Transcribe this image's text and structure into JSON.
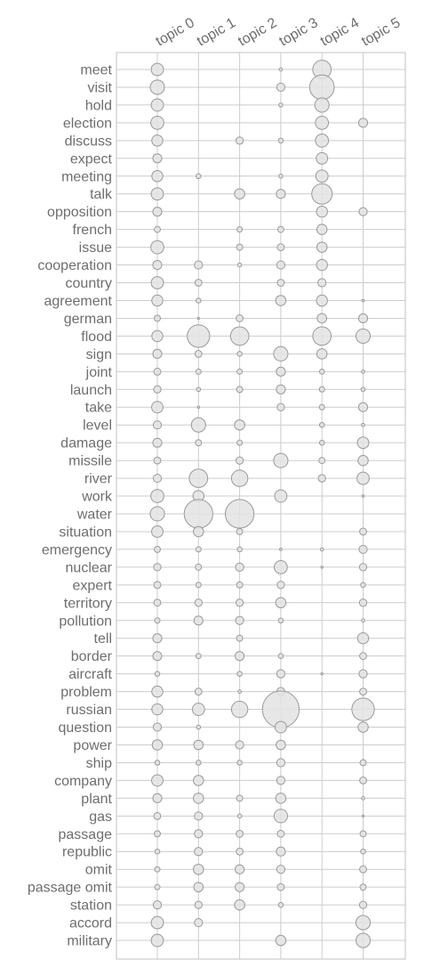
{
  "chart_data": {
    "type": "bubble-matrix",
    "topics": [
      "topic 0",
      "topic 1",
      "topic 2",
      "topic 3",
      "topic 4",
      "topic 5"
    ],
    "words": [
      "meet",
      "visit",
      "hold",
      "election",
      "discuss",
      "expect",
      "meeting",
      "talk",
      "opposition",
      "french",
      "issue",
      "cooperation",
      "country",
      "agreement",
      "german",
      "flood",
      "sign",
      "joint",
      "launch",
      "take",
      "level",
      "damage",
      "missile",
      "river",
      "work",
      "water",
      "situation",
      "emergency",
      "nuclear",
      "expert",
      "territory",
      "pollution",
      "tell",
      "border",
      "aircraft",
      "problem",
      "russian",
      "question",
      "power",
      "ship",
      "company",
      "plant",
      "gas",
      "passage",
      "republic",
      "omit",
      "passage omit",
      "station",
      "accord",
      "military"
    ],
    "values": [
      [
        0.3,
        0,
        0,
        0.08,
        0.45,
        0
      ],
      [
        0.35,
        0,
        0,
        0.2,
        0.6,
        0
      ],
      [
        0.3,
        0,
        0,
        0.1,
        0.35,
        0
      ],
      [
        0.32,
        0,
        0,
        0,
        0.32,
        0.22
      ],
      [
        0.27,
        0,
        0.18,
        0.12,
        0.32,
        0
      ],
      [
        0.22,
        0,
        0,
        0,
        0.28,
        0
      ],
      [
        0.27,
        0.12,
        0,
        0.1,
        0.3,
        0
      ],
      [
        0.3,
        0,
        0.25,
        0.22,
        0.5,
        0
      ],
      [
        0.22,
        0,
        0,
        0,
        0.27,
        0.2
      ],
      [
        0.15,
        0,
        0.13,
        0.15,
        0.25,
        0
      ],
      [
        0.32,
        0,
        0.15,
        0.17,
        0.25,
        0
      ],
      [
        0.22,
        0.2,
        0.1,
        0.2,
        0.27,
        0
      ],
      [
        0.3,
        0.17,
        0,
        0.17,
        0.2,
        0
      ],
      [
        0.27,
        0.12,
        0,
        0.25,
        0.27,
        0.06
      ],
      [
        0.15,
        0.04,
        0.17,
        0,
        0.23,
        0.22
      ],
      [
        0.27,
        0.55,
        0.45,
        0,
        0.45,
        0.35
      ],
      [
        0.22,
        0.17,
        0.12,
        0.35,
        0.25,
        0
      ],
      [
        0.17,
        0.13,
        0.13,
        0.22,
        0.12,
        0.08
      ],
      [
        0.18,
        0.1,
        0.15,
        0.22,
        0.13,
        0.1
      ],
      [
        0.28,
        0.05,
        0,
        0.18,
        0.13,
        0.22
      ],
      [
        0.2,
        0.35,
        0.25,
        0,
        0.12,
        0.08
      ],
      [
        0.22,
        0.15,
        0.13,
        0,
        0.12,
        0.28
      ],
      [
        0.17,
        0,
        0.18,
        0.35,
        0.15,
        0.25
      ],
      [
        0.2,
        0.45,
        0.4,
        0,
        0.18,
        0.3
      ],
      [
        0.32,
        0.27,
        0,
        0.3,
        0,
        0.06
      ],
      [
        0.35,
        0.7,
        0.7,
        0,
        0,
        0
      ],
      [
        0.28,
        0.25,
        0.15,
        0,
        0,
        0.17
      ],
      [
        0.15,
        0.13,
        0.12,
        0.06,
        0.08,
        0.2
      ],
      [
        0.18,
        0.15,
        0.2,
        0.32,
        0.03,
        0.18
      ],
      [
        0.17,
        0.13,
        0.15,
        0.18,
        0,
        0.12
      ],
      [
        0.17,
        0.18,
        0.18,
        0.25,
        0,
        0.18
      ],
      [
        0.13,
        0.22,
        0.2,
        0.12,
        0,
        0.08
      ],
      [
        0.22,
        0,
        0.15,
        0,
        0,
        0.27
      ],
      [
        0.22,
        0.13,
        0.22,
        0.12,
        0,
        0.17
      ],
      [
        0.12,
        0,
        0.12,
        0.2,
        0.05,
        0.2
      ],
      [
        0.27,
        0.17,
        0.08,
        0.2,
        0,
        0.17
      ],
      [
        0.27,
        0.3,
        0.4,
        0.9,
        0,
        0.55
      ],
      [
        0.2,
        0.1,
        0,
        0.28,
        0,
        0.25
      ],
      [
        0.25,
        0.23,
        0.2,
        0.23,
        0,
        0
      ],
      [
        0.12,
        0.12,
        0.12,
        0.2,
        0,
        0.15
      ],
      [
        0.28,
        0.25,
        0,
        0.2,
        0,
        0.17
      ],
      [
        0.22,
        0.25,
        0.15,
        0.25,
        0,
        0.08
      ],
      [
        0.17,
        0.2,
        0.1,
        0.33,
        0,
        0.03
      ],
      [
        0.15,
        0.2,
        0.17,
        0.17,
        0,
        0.15
      ],
      [
        0.12,
        0.2,
        0.17,
        0.22,
        0,
        0.12
      ],
      [
        0.13,
        0.25,
        0.22,
        0.2,
        0,
        0.17
      ],
      [
        0.13,
        0.23,
        0.22,
        0.17,
        0,
        0.15
      ],
      [
        0.2,
        0.18,
        0.25,
        0.12,
        0,
        0.18
      ],
      [
        0.3,
        0.2,
        0,
        0,
        0,
        0.35
      ],
      [
        0.3,
        0,
        0,
        0.25,
        0,
        0.35
      ]
    ],
    "value_scale": "relative weight (max 1)",
    "grid": true,
    "colors": {
      "bubble_fill": "#e3e3e3",
      "bubble_stroke": "#9a9a9a",
      "grid": "#cccccc",
      "frame": "#cccccc",
      "label": "#6e6e6e"
    }
  }
}
